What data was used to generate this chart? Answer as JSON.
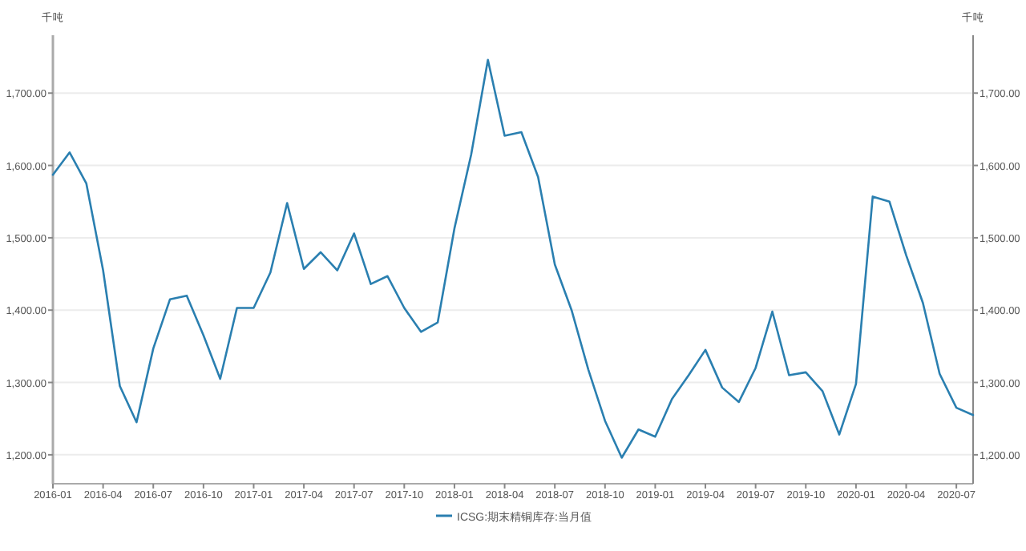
{
  "chart_data": {
    "type": "line",
    "ylabel": "千吨",
    "y2label": "千吨",
    "x": [
      "2016-01",
      "2016-02",
      "2016-03",
      "2016-04",
      "2016-05",
      "2016-06",
      "2016-07",
      "2016-08",
      "2016-09",
      "2016-10",
      "2016-11",
      "2016-12",
      "2017-01",
      "2017-02",
      "2017-03",
      "2017-04",
      "2017-05",
      "2017-06",
      "2017-07",
      "2017-08",
      "2017-09",
      "2017-10",
      "2017-11",
      "2017-12",
      "2018-01",
      "2018-02",
      "2018-03",
      "2018-04",
      "2018-05",
      "2018-06",
      "2018-07",
      "2018-08",
      "2018-09",
      "2018-10",
      "2018-11",
      "2018-12",
      "2019-01",
      "2019-02",
      "2019-03",
      "2019-04",
      "2019-05",
      "2019-06",
      "2019-07",
      "2019-08",
      "2019-09",
      "2019-10",
      "2019-11",
      "2019-12",
      "2020-01",
      "2020-02",
      "2020-03",
      "2020-04",
      "2020-05",
      "2020-06",
      "2020-07",
      "2020-08"
    ],
    "series": [
      {
        "name": "ICSG:期末精铜库存:当月值",
        "color": "#2a7fb0",
        "values": [
          1587,
          1618,
          1575,
          1455,
          1295,
          1245,
          1347,
          1415,
          1420,
          1365,
          1305,
          1403,
          1403,
          1452,
          1548,
          1457,
          1480,
          1455,
          1506,
          1436,
          1447,
          1403,
          1370,
          1383,
          1513,
          1615,
          1746,
          1641,
          1646,
          1584,
          1463,
          1400,
          1318,
          1247,
          1196,
          1235,
          1225,
          1277,
          1310,
          1345,
          1293,
          1273,
          1320,
          1398,
          1310,
          1314,
          1288,
          1228,
          1298,
          1557,
          1550,
          1476,
          1410,
          1312,
          1265,
          1255
        ]
      }
    ],
    "xlim": [
      "2016-01",
      "2020-08"
    ],
    "xticks": [
      "2016-01",
      "2016-04",
      "2016-07",
      "2016-10",
      "2017-01",
      "2017-04",
      "2017-07",
      "2017-10",
      "2018-01",
      "2018-04",
      "2018-07",
      "2018-10",
      "2019-01",
      "2019-04",
      "2019-07",
      "2019-10",
      "2020-01",
      "2020-04",
      "2020-07"
    ],
    "ylim": [
      1160,
      1780
    ],
    "yticks": [
      {
        "value": 1200,
        "label": "1,200.00"
      },
      {
        "value": 1300,
        "label": "1,300.00"
      },
      {
        "value": 1400,
        "label": "1,400.00"
      },
      {
        "value": 1500,
        "label": "1,500.00"
      },
      {
        "value": 1600,
        "label": "1,600.00"
      },
      {
        "value": 1700,
        "label": "1,700.00"
      }
    ],
    "y2lim": [
      1160,
      1780
    ],
    "y2ticks": [
      {
        "value": 1200,
        "label": "1,200.00"
      },
      {
        "value": 1300,
        "label": "1,300.00"
      },
      {
        "value": 1400,
        "label": "1,400.00"
      },
      {
        "value": 1500,
        "label": "1,500.00"
      },
      {
        "value": 1600,
        "label": "1,600.00"
      },
      {
        "value": 1700,
        "label": "1,700.00"
      }
    ],
    "grid": "y",
    "legend": "bottom",
    "marker": "none",
    "line_style": "solid"
  }
}
